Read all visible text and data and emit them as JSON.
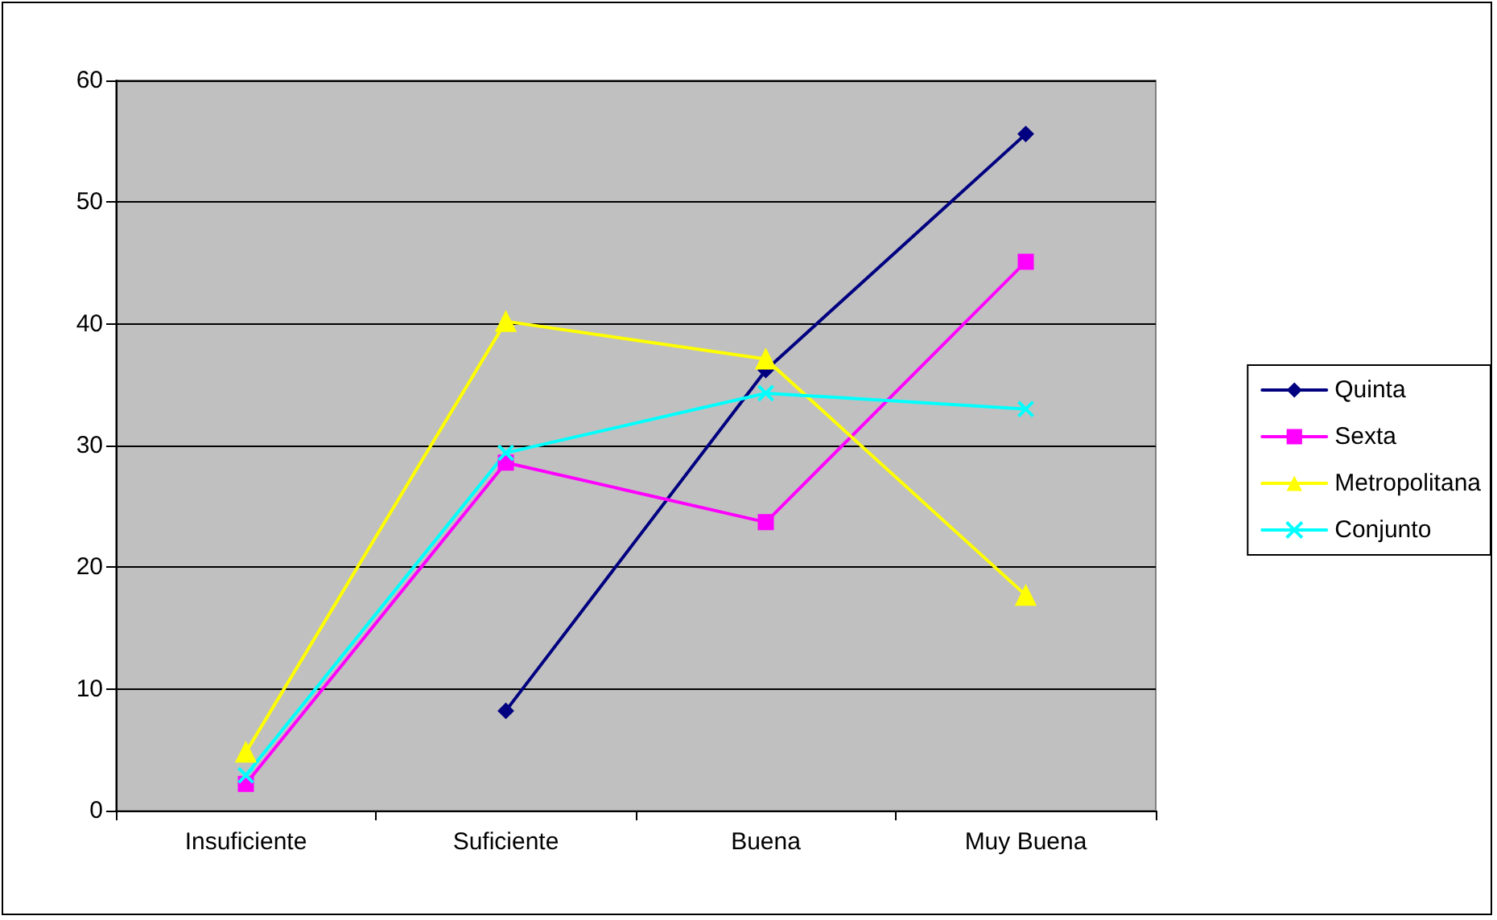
{
  "chart_data": {
    "type": "line",
    "categories": [
      "Insuficiente",
      "Suficiente",
      "Buena",
      "Muy Buena"
    ],
    "series": [
      {
        "name": "Quinta",
        "color": "#000080",
        "marker": "diamond",
        "values": [
          null,
          8.2,
          36.2,
          55.6
        ]
      },
      {
        "name": "Sexta",
        "color": "#ff00ff",
        "marker": "square",
        "values": [
          2.2,
          28.6,
          23.7,
          45.1
        ]
      },
      {
        "name": "Metropolitana",
        "color": "#ffff00",
        "marker": "triangle",
        "values": [
          4.8,
          40.2,
          37.1,
          17.7
        ]
      },
      {
        "name": "Conjunto",
        "color": "#00ffff",
        "marker": "cross",
        "values": [
          2.9,
          29.4,
          34.3,
          33.0
        ]
      }
    ],
    "ylim": [
      0,
      60
    ],
    "yticks": [
      0,
      10,
      20,
      30,
      40,
      50,
      60
    ],
    "grid": "y",
    "legend": "right",
    "line_style": "solid"
  }
}
